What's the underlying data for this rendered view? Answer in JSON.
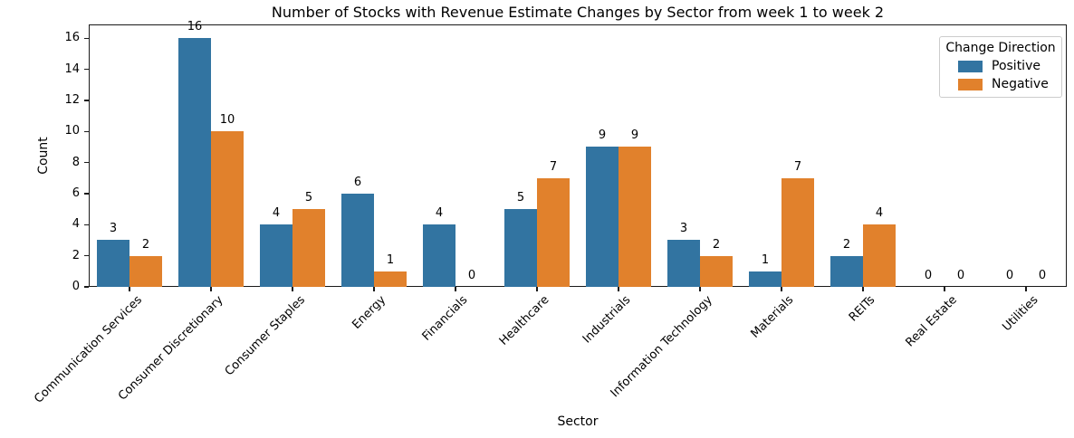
{
  "chart_data": {
    "type": "bar",
    "title": "Number of Stocks with Revenue Estimate Changes by Sector from week 1 to week 2",
    "xlabel": "Sector",
    "ylabel": "Count",
    "legend_title": "Change Direction",
    "legend_position": "upper right",
    "categories": [
      "Communication Services",
      "Consumer Discretionary",
      "Consumer Staples",
      "Energy",
      "Financials",
      "Healthcare",
      "Industrials",
      "Information Technology",
      "Materials",
      "REITs",
      "Real Estate",
      "Utilities"
    ],
    "series": [
      {
        "name": "Positive",
        "color": "#3274a1",
        "values": [
          3,
          16,
          4,
          6,
          4,
          5,
          9,
          3,
          1,
          2,
          0,
          0
        ]
      },
      {
        "name": "Negative",
        "color": "#e1812c",
        "values": [
          2,
          10,
          5,
          1,
          0,
          7,
          9,
          2,
          7,
          4,
          0,
          0
        ]
      }
    ],
    "yticks": [
      0,
      2,
      4,
      6,
      8,
      10,
      12,
      14,
      16
    ],
    "ylim": [
      0,
      16.89
    ],
    "grid": false,
    "bar_value_labels": true,
    "xtick_rotation": 45
  }
}
